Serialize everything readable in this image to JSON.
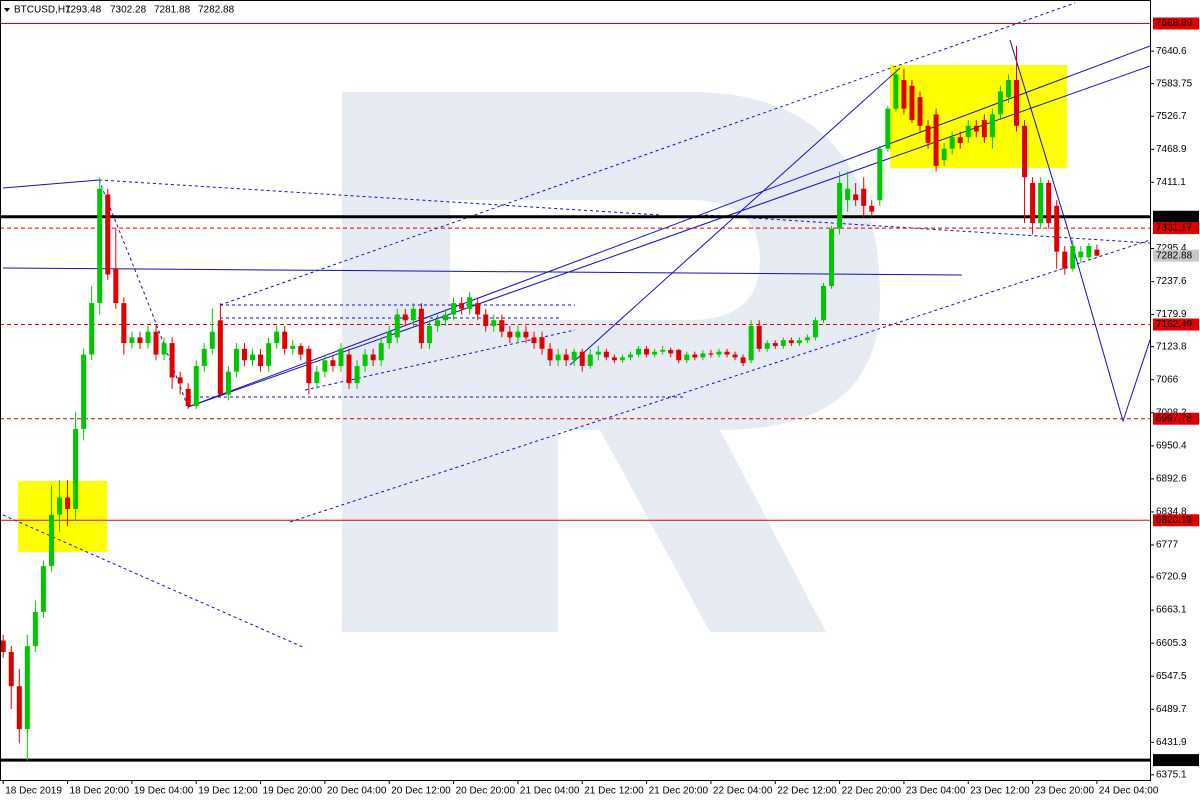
{
  "chart_data": {
    "type": "candlestick",
    "title": "BTCUSD,H1",
    "ylim": [
      6366,
      7730
    ],
    "xlim": [
      -0.4,
      142.6
    ],
    "yticks": [
      7640.6,
      7583.75,
      7526.7,
      7468.9,
      7411.1,
      7295.4,
      7237.6,
      7179.9,
      7123.8,
      7066.0,
      7008.2,
      6950.4,
      6892.6,
      6834.8,
      6777.0,
      6720.9,
      6663.1,
      6605.3,
      6547.5,
      6489.7,
      6431.9,
      6375.1
    ],
    "xticks": [
      {
        "value": 0,
        "label": "18 Dec 2019"
      },
      {
        "value": 8,
        "label": "18 Dec 20:00"
      },
      {
        "value": 16,
        "label": "19 Dec 04:00"
      },
      {
        "value": 24,
        "label": "19 Dec 12:00"
      },
      {
        "value": 32,
        "label": "19 Dec 20:00"
      },
      {
        "value": 40,
        "label": "20 Dec 04:00"
      },
      {
        "value": 48,
        "label": "20 Dec 12:00"
      },
      {
        "value": 56,
        "label": "20 Dec 20:00"
      },
      {
        "value": 64,
        "label": "21 Dec 04:00"
      },
      {
        "value": 72,
        "label": "21 Dec 12:00"
      },
      {
        "value": 80,
        "label": "21 Dec 20:00"
      },
      {
        "value": 88,
        "label": "22 Dec 04:00"
      },
      {
        "value": 96,
        "label": "22 Dec 12:00"
      },
      {
        "value": 104,
        "label": "22 Dec 20:00"
      },
      {
        "value": 112,
        "label": "23 Dec 04:00"
      },
      {
        "value": 120,
        "label": "23 Dec 12:00"
      },
      {
        "value": 128,
        "label": "23 Dec 20:00"
      },
      {
        "value": 136,
        "label": "24 Dec 04:00"
      }
    ],
    "up_color": "#00c800",
    "down_color": "#e00000",
    "levels": [
      {
        "value": 7688.89,
        "color": "#e00000",
        "dash": false,
        "width": 1
      },
      {
        "value": 7350.91,
        "color": "#000000",
        "dash": false,
        "width": 3
      },
      {
        "value": 7331.17,
        "color": "#e00000",
        "dash": true,
        "width": 1
      },
      {
        "value": 7162.49,
        "color": "#e00000",
        "dash": true,
        "width": 1
      },
      {
        "value": 6997.78,
        "color": "#e00000",
        "dash": true,
        "width": 1
      },
      {
        "value": 6820.19,
        "color": "#e00000",
        "dash": false,
        "width": 1
      },
      {
        "value": 6400.82,
        "color": "#000000",
        "dash": false,
        "width": 3
      }
    ],
    "candles": [
      [
        6610,
        6620,
        6580,
        6590
      ],
      [
        6590,
        6600,
        6490,
        6530
      ],
      [
        6530,
        6560,
        6430,
        6455
      ],
      [
        6455,
        6620,
        6400,
        6600
      ],
      [
        6600,
        6680,
        6590,
        6660
      ],
      [
        6660,
        6750,
        6650,
        6740
      ],
      [
        6740,
        6880,
        6730,
        6830
      ],
      [
        6830,
        6890,
        6800,
        6860
      ],
      [
        6860,
        6890,
        6810,
        6840
      ],
      [
        6840,
        7010,
        6820,
        6980
      ],
      [
        6980,
        7120,
        6960,
        7110
      ],
      [
        7110,
        7230,
        7100,
        7200
      ],
      [
        7200,
        7420,
        7180,
        7400
      ],
      [
        7390,
        7400,
        7240,
        7250
      ],
      [
        7260,
        7330,
        7190,
        7200
      ],
      [
        7200,
        7210,
        7110,
        7130
      ],
      [
        7130,
        7150,
        7120,
        7140
      ],
      [
        7140,
        7150,
        7120,
        7130
      ],
      [
        7130,
        7160,
        7120,
        7150
      ],
      [
        7150,
        7160,
        7100,
        7110
      ],
      [
        7110,
        7140,
        7100,
        7130
      ],
      [
        7130,
        7140,
        7050,
        7070
      ],
      [
        7070,
        7080,
        7040,
        7060
      ],
      [
        7050,
        7060,
        7015,
        7020
      ],
      [
        7020,
        7100,
        7015,
        7090
      ],
      [
        7090,
        7130,
        7080,
        7120
      ],
      [
        7120,
        7190,
        7110,
        7150
      ],
      [
        7170,
        7200,
        7040,
        7040
      ],
      [
        7040,
        7090,
        7030,
        7080
      ],
      [
        7080,
        7130,
        7070,
        7120
      ],
      [
        7120,
        7130,
        7090,
        7100
      ],
      [
        7100,
        7120,
        7090,
        7110
      ],
      [
        7110,
        7120,
        7080,
        7090
      ],
      [
        7090,
        7140,
        7080,
        7130
      ],
      [
        7130,
        7160,
        7120,
        7150
      ],
      [
        7150,
        7160,
        7110,
        7120
      ],
      [
        7120,
        7135,
        7110,
        7125
      ],
      [
        7125,
        7130,
        7100,
        7110
      ],
      [
        7120,
        7125,
        7040,
        7060
      ],
      [
        7060,
        7090,
        7050,
        7080
      ],
      [
        7080,
        7110,
        7070,
        7100
      ],
      [
        7100,
        7110,
        7080,
        7090
      ],
      [
        7090,
        7130,
        7080,
        7120
      ],
      [
        7110,
        7120,
        7050,
        7060
      ],
      [
        7060,
        7100,
        7050,
        7090
      ],
      [
        7090,
        7120,
        7080,
        7110
      ],
      [
        7110,
        7120,
        7090,
        7100
      ],
      [
        7100,
        7140,
        7090,
        7130
      ],
      [
        7130,
        7160,
        7120,
        7150
      ],
      [
        7140,
        7190,
        7130,
        7180
      ],
      [
        7180,
        7190,
        7160,
        7170
      ],
      [
        7170,
        7200,
        7160,
        7190
      ],
      [
        7190,
        7200,
        7120,
        7130
      ],
      [
        7130,
        7170,
        7120,
        7160
      ],
      [
        7160,
        7180,
        7150,
        7170
      ],
      [
        7170,
        7190,
        7160,
        7180
      ],
      [
        7180,
        7210,
        7170,
        7200
      ],
      [
        7200,
        7210,
        7180,
        7190
      ],
      [
        7190,
        7220,
        7180,
        7210
      ],
      [
        7200,
        7210,
        7170,
        7180
      ],
      [
        7180,
        7190,
        7150,
        7160
      ],
      [
        7160,
        7180,
        7150,
        7170
      ],
      [
        7170,
        7180,
        7140,
        7150
      ],
      [
        7150,
        7160,
        7130,
        7140
      ],
      [
        7140,
        7160,
        7130,
        7150
      ],
      [
        7150,
        7160,
        7130,
        7140
      ],
      [
        7140,
        7150,
        7120,
        7130
      ],
      [
        7140,
        7150,
        7110,
        7120
      ],
      [
        7120,
        7130,
        7090,
        7100
      ],
      [
        7100,
        7120,
        7090,
        7110
      ],
      [
        7110,
        7120,
        7090,
        7100
      ],
      [
        7100,
        7120,
        7090,
        7115
      ],
      [
        7115,
        7120,
        7080,
        7090
      ],
      [
        7090,
        7120,
        7085,
        7110
      ],
      [
        7110,
        7125,
        7100,
        7115
      ],
      [
        7115,
        7120,
        7100,
        7105
      ],
      [
        7105,
        7110,
        7095,
        7100
      ],
      [
        7100,
        7110,
        7095,
        7105
      ],
      [
        7105,
        7115,
        7100,
        7110
      ],
      [
        7110,
        7125,
        7105,
        7120
      ],
      [
        7120,
        7125,
        7105,
        7110
      ],
      [
        7110,
        7120,
        7105,
        7115
      ],
      [
        7115,
        7125,
        7110,
        7118
      ],
      [
        7118,
        7122,
        7105,
        7112
      ],
      [
        7118,
        7120,
        7095,
        7100
      ],
      [
        7100,
        7115,
        7095,
        7110
      ],
      [
        7110,
        7115,
        7100,
        7105
      ],
      [
        7105,
        7118,
        7100,
        7112
      ],
      [
        7112,
        7118,
        7105,
        7110
      ],
      [
        7110,
        7120,
        7105,
        7115
      ],
      [
        7115,
        7120,
        7105,
        7110
      ],
      [
        7110,
        7115,
        7100,
        7105
      ],
      [
        7105,
        7110,
        7090,
        7095
      ],
      [
        7100,
        7170,
        7095,
        7160
      ],
      [
        7160,
        7170,
        7115,
        7120
      ],
      [
        7120,
        7135,
        7115,
        7130
      ],
      [
        7130,
        7135,
        7120,
        7125
      ],
      [
        7125,
        7140,
        7120,
        7135
      ],
      [
        7135,
        7140,
        7125,
        7130
      ],
      [
        7130,
        7140,
        7125,
        7135
      ],
      [
        7135,
        7145,
        7130,
        7140
      ],
      [
        7140,
        7175,
        7135,
        7170
      ],
      [
        7170,
        7235,
        7165,
        7230
      ],
      [
        7230,
        7335,
        7225,
        7330
      ],
      [
        7330,
        7430,
        7320,
        7410
      ],
      [
        7380,
        7430,
        7360,
        7400
      ],
      [
        7390,
        7410,
        7370,
        7380
      ],
      [
        7400,
        7420,
        7350,
        7370
      ],
      [
        7370,
        7380,
        7350,
        7360
      ],
      [
        7380,
        7475,
        7370,
        7470
      ],
      [
        7470,
        7545,
        7465,
        7540
      ],
      [
        7540,
        7610,
        7535,
        7600
      ],
      [
        7590,
        7610,
        7530,
        7540
      ],
      [
        7580,
        7590,
        7515,
        7520
      ],
      [
        7560,
        7570,
        7500,
        7510
      ],
      [
        7510,
        7520,
        7470,
        7480
      ],
      [
        7530,
        7540,
        7430,
        7440
      ],
      [
        7450,
        7480,
        7440,
        7470
      ],
      [
        7470,
        7500,
        7460,
        7490
      ],
      [
        7490,
        7500,
        7470,
        7480
      ],
      [
        7490,
        7520,
        7480,
        7510
      ],
      [
        7510,
        7520,
        7490,
        7500
      ],
      [
        7520,
        7530,
        7480,
        7490
      ],
      [
        7490,
        7540,
        7470,
        7530
      ],
      [
        7530,
        7580,
        7520,
        7570
      ],
      [
        7560,
        7600,
        7550,
        7590
      ],
      [
        7590,
        7650,
        7500,
        7510
      ],
      [
        7510,
        7520,
        7340,
        7420
      ],
      [
        7410,
        7420,
        7320,
        7340
      ],
      [
        7340,
        7420,
        7330,
        7410
      ],
      [
        7410,
        7415,
        7330,
        7340
      ],
      [
        7370,
        7380,
        7260,
        7290
      ],
      [
        7290,
        7300,
        7250,
        7260
      ],
      [
        7260,
        7310,
        7255,
        7300
      ],
      [
        7280,
        7300,
        7270,
        7290
      ],
      [
        7280,
        7305,
        7275,
        7300
      ],
      [
        7293.48,
        7302.28,
        7281.88,
        7282.88
      ]
    ]
  }
}
